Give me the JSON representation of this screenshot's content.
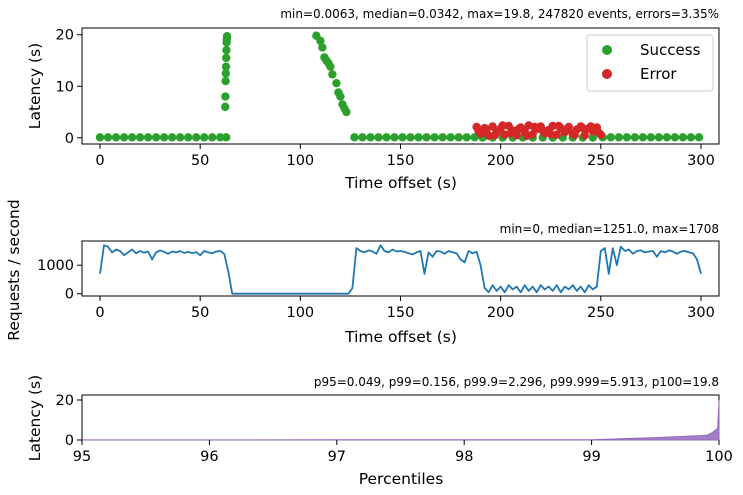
{
  "chart_data": [
    {
      "type": "scatter",
      "stats_text": "min=0.0063, median=0.0342, max=19.8, 247820 events, errors=3.35%",
      "xlabel": "Time offset (s)",
      "ylabel": "Latency (s)",
      "xlim": [
        -9,
        309
      ],
      "ylim": [
        -1.2,
        21.3
      ],
      "x_ticks": [
        0,
        50,
        100,
        150,
        200,
        250,
        300
      ],
      "y_ticks": [
        0,
        10,
        20
      ],
      "legend_position": "top-right",
      "colors": {
        "success": "#2ca02c",
        "error": "#d62728"
      },
      "series": [
        {
          "name": "Success",
          "points": [
            [
              0,
              0.1
            ],
            [
              4,
              0.1
            ],
            [
              8,
              0.1
            ],
            [
              12,
              0.1
            ],
            [
              16,
              0.1
            ],
            [
              20,
              0.1
            ],
            [
              24,
              0.1
            ],
            [
              28,
              0.1
            ],
            [
              32,
              0.1
            ],
            [
              36,
              0.1
            ],
            [
              40,
              0.1
            ],
            [
              44,
              0.1
            ],
            [
              48,
              0.1
            ],
            [
              52,
              0.1
            ],
            [
              56,
              0.1
            ],
            [
              60,
              0.1
            ],
            [
              63,
              0.1
            ],
            [
              62.5,
              6
            ],
            [
              62.6,
              8
            ],
            [
              62.7,
              11
            ],
            [
              62.8,
              12.5
            ],
            [
              62.9,
              13.8
            ],
            [
              63,
              15.5
            ],
            [
              63.1,
              17
            ],
            [
              63.2,
              18.5
            ],
            [
              63.3,
              19.2
            ],
            [
              63.4,
              19.7
            ],
            [
              108,
              19.8
            ],
            [
              110,
              18.8
            ],
            [
              111,
              17.5
            ],
            [
              112,
              15.6
            ],
            [
              113,
              15
            ],
            [
              114,
              14.5
            ],
            [
              115,
              13.8
            ],
            [
              116,
              12.3
            ],
            [
              118,
              10.6
            ],
            [
              119,
              8.8
            ],
            [
              120,
              8
            ],
            [
              121,
              6.5
            ],
            [
              122,
              5.7
            ],
            [
              123,
              5
            ],
            [
              127,
              0.1
            ],
            [
              131,
              0.1
            ],
            [
              135,
              0.1
            ],
            [
              139,
              0.1
            ],
            [
              143,
              0.1
            ],
            [
              147,
              0.1
            ],
            [
              151,
              0.1
            ],
            [
              155,
              0.1
            ],
            [
              159,
              0.1
            ],
            [
              163,
              0.1
            ],
            [
              167,
              0.1
            ],
            [
              171,
              0.1
            ],
            [
              175,
              0.1
            ],
            [
              179,
              0.1
            ],
            [
              183,
              0.1
            ],
            [
              187,
              0.1
            ],
            [
              191,
              0.05
            ],
            [
              196,
              0.05
            ],
            [
              201,
              0.05
            ],
            [
              206,
              0.05
            ],
            [
              211,
              0.05
            ],
            [
              216,
              0.05
            ],
            [
              221,
              0.05
            ],
            [
              226,
              0.05
            ],
            [
              231,
              0.05
            ],
            [
              236,
              0.05
            ],
            [
              241,
              0.05
            ],
            [
              246,
              0.05
            ],
            [
              251,
              0.1
            ],
            [
              255,
              0.1
            ],
            [
              259,
              0.1
            ],
            [
              263,
              0.1
            ],
            [
              267,
              0.1
            ],
            [
              271,
              0.1
            ],
            [
              275,
              0.1
            ],
            [
              279,
              0.1
            ],
            [
              283,
              0.1
            ],
            [
              287,
              0.1
            ],
            [
              291,
              0.1
            ],
            [
              295,
              0.1
            ],
            [
              299,
              0.1
            ]
          ]
        },
        {
          "name": "Error",
          "points": [
            [
              188,
              2.1
            ],
            [
              190,
              0.8
            ],
            [
              192,
              1.9
            ],
            [
              194,
              0.4
            ],
            [
              196,
              2.2
            ],
            [
              198,
              1.1
            ],
            [
              200,
              1.8
            ],
            [
              202,
              0.6
            ],
            [
              204,
              2.3
            ],
            [
              206,
              1.4
            ],
            [
              208,
              0.5
            ],
            [
              210,
              2.0
            ],
            [
              212,
              1.2
            ],
            [
              214,
              2.4
            ],
            [
              216,
              0.7
            ],
            [
              218,
              1.7
            ],
            [
              220,
              2.2
            ],
            [
              222,
              0.9
            ],
            [
              224,
              1.5
            ],
            [
              226,
              2.3
            ],
            [
              228,
              0.6
            ],
            [
              230,
              1.9
            ],
            [
              232,
              1.1
            ],
            [
              234,
              2.1
            ],
            [
              236,
              0.8
            ],
            [
              238,
              1.6
            ],
            [
              240,
              2.2
            ],
            [
              242,
              0.5
            ],
            [
              244,
              1.8
            ],
            [
              246,
              1.3
            ],
            [
              248,
              2.0
            ],
            [
              250,
              0.6
            ],
            [
              189,
              1.3
            ],
            [
              193,
              1.6
            ],
            [
              197,
              0.5
            ],
            [
              201,
              2.4
            ],
            [
              205,
              0.9
            ],
            [
              209,
              1.7
            ],
            [
              213,
              0.4
            ],
            [
              217,
              2.1
            ],
            [
              221,
              1.4
            ],
            [
              225,
              0.7
            ],
            [
              229,
              2.3
            ],
            [
              233,
              1.5
            ],
            [
              237,
              0.6
            ],
            [
              241,
              1.9
            ],
            [
              245,
              2.2
            ],
            [
              249,
              1.0
            ]
          ]
        }
      ]
    },
    {
      "type": "line",
      "stats_text": "min=0, median=1251.0, max=1708",
      "xlabel": "Time offset (s)",
      "ylabel": "Requests / second",
      "xlim": [
        -9,
        309
      ],
      "ylim": [
        -80,
        1850
      ],
      "x_ticks": [
        0,
        50,
        100,
        150,
        200,
        250,
        300
      ],
      "y_ticks": [
        0,
        1000
      ],
      "color": "#1f77b4",
      "x": [
        0,
        2,
        4,
        6,
        8,
        10,
        12,
        14,
        16,
        18,
        20,
        22,
        24,
        26,
        28,
        30,
        32,
        34,
        36,
        38,
        40,
        42,
        44,
        46,
        48,
        50,
        52,
        54,
        56,
        58,
        60,
        62,
        64,
        66,
        80,
        100,
        120,
        124,
        126,
        128,
        130,
        132,
        134,
        136,
        138,
        140,
        142,
        144,
        146,
        148,
        150,
        152,
        154,
        156,
        158,
        160,
        162,
        164,
        166,
        168,
        170,
        172,
        174,
        176,
        178,
        180,
        182,
        184,
        186,
        188,
        190,
        192,
        194,
        196,
        198,
        200,
        202,
        204,
        206,
        208,
        210,
        212,
        214,
        216,
        218,
        220,
        222,
        224,
        226,
        228,
        230,
        232,
        234,
        236,
        238,
        240,
        242,
        244,
        246,
        248,
        250,
        252,
        254,
        256,
        258,
        260,
        262,
        264,
        266,
        268,
        270,
        272,
        274,
        276,
        278,
        280,
        282,
        284,
        286,
        288,
        290,
        292,
        294,
        296,
        298,
        300
      ],
      "y": [
        700,
        1700,
        1650,
        1450,
        1550,
        1500,
        1350,
        1450,
        1550,
        1420,
        1500,
        1440,
        1480,
        1200,
        1450,
        1520,
        1470,
        1400,
        1480,
        1450,
        1500,
        1430,
        1470,
        1420,
        1460,
        1350,
        1500,
        1450,
        1420,
        1480,
        1500,
        1400,
        800,
        0,
        0,
        0,
        0,
        0,
        200,
        1600,
        1500,
        1450,
        1520,
        1480,
        1400,
        1700,
        1500,
        1450,
        1550,
        1480,
        1500,
        1470,
        1420,
        1380,
        1450,
        1500,
        700,
        1450,
        1300,
        1500,
        1480,
        1400,
        1500,
        1450,
        1420,
        1200,
        1100,
        1500,
        1420,
        1470,
        1000,
        200,
        50,
        300,
        100,
        250,
        50,
        300,
        150,
        250,
        50,
        300,
        100,
        250,
        50,
        300,
        150,
        250,
        100,
        300,
        50,
        250,
        150,
        300,
        100,
        250,
        50,
        300,
        150,
        250,
        1500,
        1600,
        700,
        1600,
        1000,
        1650,
        1500,
        1550,
        1400,
        1500,
        1520,
        1450,
        1480,
        1500,
        1300,
        1500,
        1450,
        1520,
        1480,
        1400,
        1480,
        1500,
        1450,
        1420,
        1200,
        700
      ],
      "y_min_label": 0
    },
    {
      "type": "area",
      "stats_text": "p95=0.049, p99=0.156, p99.9=2.296, p99.999=5.913, p100=19.8",
      "xlabel": "Percentiles",
      "ylabel": "Latency (s)",
      "xlim": [
        95,
        100
      ],
      "ylim": [
        0,
        22.5
      ],
      "x_ticks": [
        95,
        96,
        97,
        98,
        99,
        100
      ],
      "y_ticks": [
        0,
        20
      ],
      "color": "#9467bd",
      "x": [
        95,
        96,
        97,
        98,
        99,
        99.5,
        99.9,
        99.95,
        99.99,
        100
      ],
      "y": [
        0.049,
        0.06,
        0.08,
        0.11,
        0.156,
        1.2,
        2.296,
        3.8,
        5.913,
        19.8
      ]
    }
  ]
}
